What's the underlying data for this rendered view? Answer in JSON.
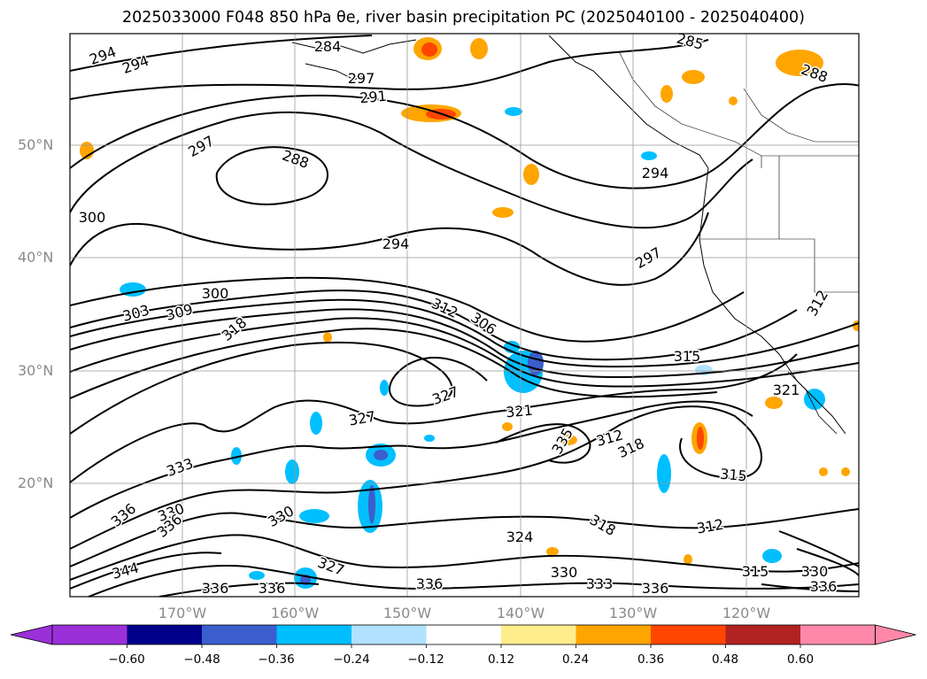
{
  "title": "2025033000 F048 850 hPa θe, river basin precipitation PC (2025040100 - 2025040400)",
  "map": {
    "lat_labels": [
      "50°N",
      "40°N",
      "30°N",
      "20°N"
    ],
    "lon_labels": [
      "170°W",
      "160°W",
      "150°W",
      "140°W",
      "130°W",
      "120°W"
    ],
    "contour_labels": [
      "294",
      "294",
      "284",
      "297",
      "291",
      "285",
      "288",
      "297",
      "288",
      "294",
      "300",
      "294",
      "297",
      "300",
      "303",
      "309",
      "318",
      "312",
      "306",
      "315",
      "312",
      "327",
      "321",
      "321",
      "327",
      "335",
      "312",
      "318",
      "333",
      "315",
      "336",
      "330",
      "330",
      "336",
      "312",
      "324",
      "318",
      "344",
      "327",
      "330",
      "333",
      "336",
      "336",
      "336",
      "336",
      "315",
      "330",
      "336"
    ]
  },
  "colorbar": {
    "levels": [
      "−0.60",
      "−0.48",
      "−0.36",
      "−0.24",
      "−0.12",
      "0.12",
      "0.24",
      "0.36",
      "0.48",
      "0.60"
    ],
    "colors": [
      "#9b30d9",
      "#00008b",
      "#3a5fcd",
      "#00bfff",
      "#b0e2ff",
      "#ffffff",
      "#ffec8b",
      "#ffa500",
      "#ff4500",
      "#b22222",
      "#ff88aa",
      "#ff88aa"
    ]
  }
}
